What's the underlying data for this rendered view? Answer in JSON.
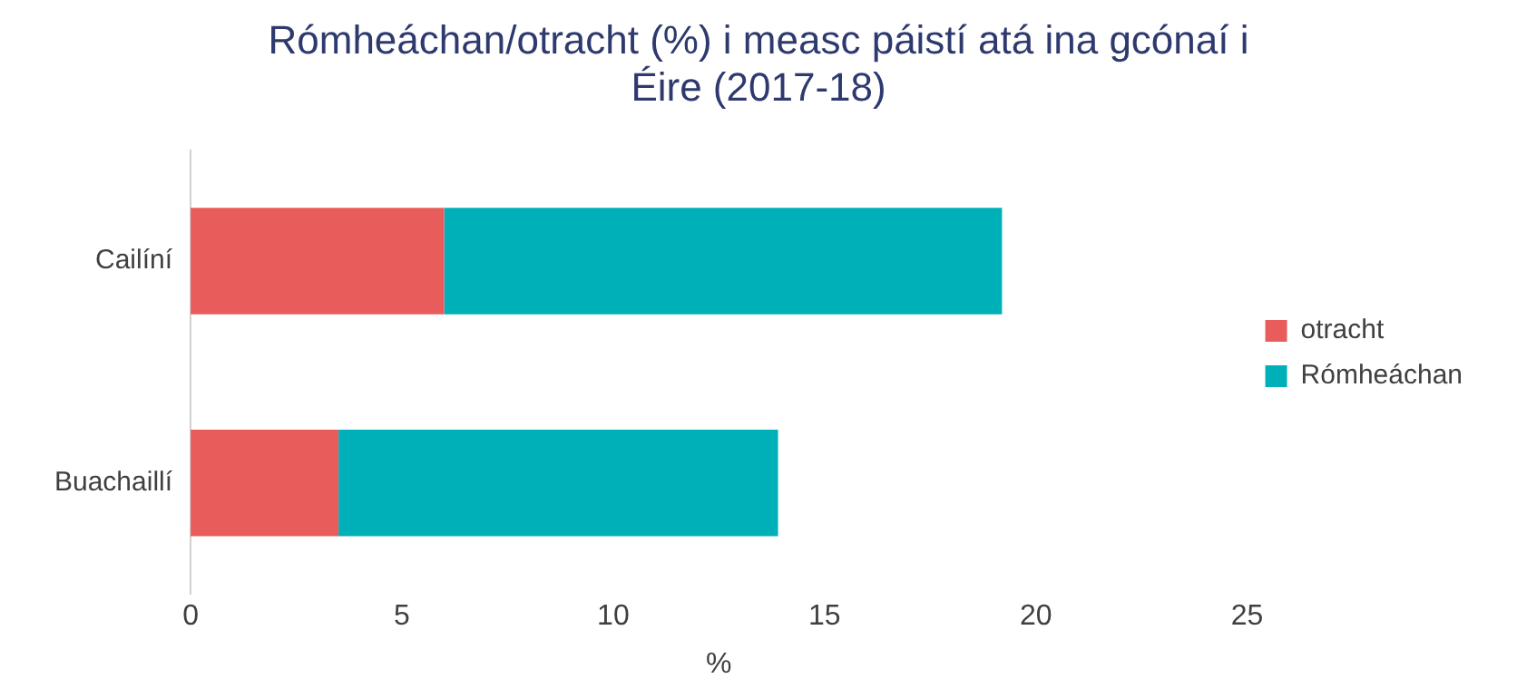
{
  "chart_data": {
    "type": "bar",
    "orientation": "horizontal",
    "stacked": true,
    "title": "Rómheáchan/otracht (%) i measc páistí atá ina gcónaí i Éire (2017-18)",
    "xlabel": "%",
    "categories": [
      "Cailíní",
      "Buachaillí"
    ],
    "series": [
      {
        "name": "otracht",
        "color": "#e95c5c",
        "values": [
          6.0,
          3.5
        ]
      },
      {
        "name": "Rómheáchan",
        "color": "#00b0b9",
        "values": [
          13.2,
          10.4
        ]
      }
    ],
    "xlim": [
      0,
      25
    ],
    "xticks": [
      0,
      5,
      10,
      15,
      20,
      25
    ],
    "grid": false,
    "legend": "right"
  }
}
